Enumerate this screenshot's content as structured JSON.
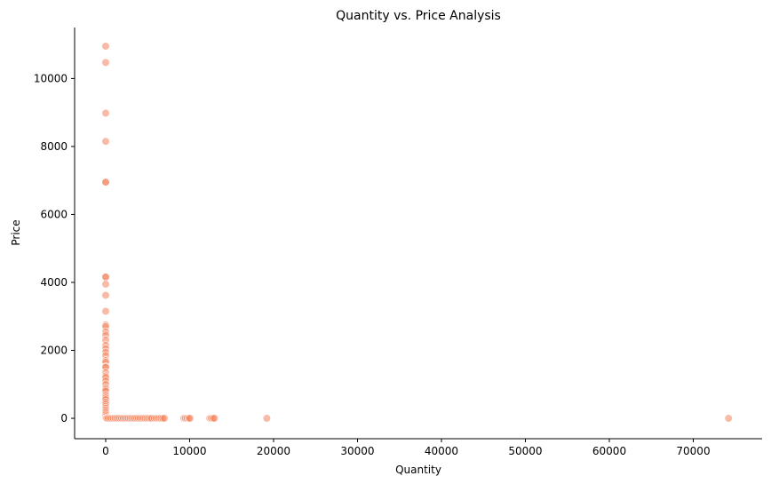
{
  "chart_data": {
    "type": "scatter",
    "title": "Quantity vs. Price Analysis",
    "xlabel": "Quantity",
    "ylabel": "Price",
    "xlim": [
      -3700,
      78200
    ],
    "ylim": [
      -600,
      11500
    ],
    "xticks": [
      0,
      10000,
      20000,
      30000,
      40000,
      50000,
      60000,
      70000
    ],
    "yticks": [
      0,
      2000,
      4000,
      6000,
      8000,
      10000
    ],
    "grid": false,
    "marker_color": "#f4845f",
    "marker_alpha": 0.55,
    "points": [
      {
        "x": 0,
        "y": 10950
      },
      {
        "x": 0,
        "y": 10470
      },
      {
        "x": 0,
        "y": 8980
      },
      {
        "x": 0,
        "y": 8150
      },
      {
        "x": 0,
        "y": 6950
      },
      {
        "x": 0,
        "y": 6950
      },
      {
        "x": 0,
        "y": 4160
      },
      {
        "x": 0,
        "y": 4160
      },
      {
        "x": 0,
        "y": 3950
      },
      {
        "x": 0,
        "y": 3620
      },
      {
        "x": 0,
        "y": 3150
      },
      {
        "x": 0,
        "y": 2750
      },
      {
        "x": 0,
        "y": 2700
      },
      {
        "x": 0,
        "y": 2550
      },
      {
        "x": 0,
        "y": 2450
      },
      {
        "x": 0,
        "y": 2300
      },
      {
        "x": 0,
        "y": 2150
      },
      {
        "x": 0,
        "y": 2050
      },
      {
        "x": 0,
        "y": 1950
      },
      {
        "x": 0,
        "y": 1850
      },
      {
        "x": 0,
        "y": 1700
      },
      {
        "x": 0,
        "y": 1650
      },
      {
        "x": 0,
        "y": 1520
      },
      {
        "x": 0,
        "y": 1500
      },
      {
        "x": 0,
        "y": 1350
      },
      {
        "x": 0,
        "y": 1250
      },
      {
        "x": 0,
        "y": 1200
      },
      {
        "x": 0,
        "y": 1100
      },
      {
        "x": 0,
        "y": 1000
      },
      {
        "x": 0,
        "y": 900
      },
      {
        "x": 0,
        "y": 850
      },
      {
        "x": 0,
        "y": 800
      },
      {
        "x": 0,
        "y": 700
      },
      {
        "x": 0,
        "y": 650
      },
      {
        "x": 0,
        "y": 600
      },
      {
        "x": 0,
        "y": 550
      },
      {
        "x": 0,
        "y": 480
      },
      {
        "x": 0,
        "y": 420
      },
      {
        "x": 0,
        "y": 350
      },
      {
        "x": 0,
        "y": 300
      },
      {
        "x": 0,
        "y": 250
      },
      {
        "x": 0,
        "y": 200
      },
      {
        "x": 0,
        "y": 150
      },
      {
        "x": 0,
        "y": 100
      },
      {
        "x": 0,
        "y": 50
      },
      {
        "x": 0,
        "y": 0
      },
      {
        "x": 80,
        "y": 0
      },
      {
        "x": 150,
        "y": 0
      },
      {
        "x": 300,
        "y": 0
      },
      {
        "x": 500,
        "y": 0
      },
      {
        "x": 700,
        "y": 0
      },
      {
        "x": 900,
        "y": 0
      },
      {
        "x": 1100,
        "y": 0
      },
      {
        "x": 1300,
        "y": 0
      },
      {
        "x": 1500,
        "y": 0
      },
      {
        "x": 1700,
        "y": 0
      },
      {
        "x": 1900,
        "y": 0
      },
      {
        "x": 2100,
        "y": 0
      },
      {
        "x": 2300,
        "y": 0
      },
      {
        "x": 2500,
        "y": 0
      },
      {
        "x": 2700,
        "y": 0
      },
      {
        "x": 2900,
        "y": 0
      },
      {
        "x": 3100,
        "y": 0
      },
      {
        "x": 3300,
        "y": 0
      },
      {
        "x": 3500,
        "y": 0
      },
      {
        "x": 3700,
        "y": 0
      },
      {
        "x": 3900,
        "y": 0
      },
      {
        "x": 4100,
        "y": 0
      },
      {
        "x": 4300,
        "y": 0
      },
      {
        "x": 4500,
        "y": 0
      },
      {
        "x": 4700,
        "y": 0
      },
      {
        "x": 4900,
        "y": 0
      },
      {
        "x": 5100,
        "y": 0
      },
      {
        "x": 5300,
        "y": 0
      },
      {
        "x": 5500,
        "y": 0
      },
      {
        "x": 5800,
        "y": 0
      },
      {
        "x": 6000,
        "y": 0
      },
      {
        "x": 6200,
        "y": 0
      },
      {
        "x": 6400,
        "y": 0
      },
      {
        "x": 6600,
        "y": 0
      },
      {
        "x": 6800,
        "y": 0
      },
      {
        "x": 7000,
        "y": 0
      },
      {
        "x": 9300,
        "y": 0
      },
      {
        "x": 9500,
        "y": 0
      },
      {
        "x": 9700,
        "y": 0
      },
      {
        "x": 9900,
        "y": 0
      },
      {
        "x": 10050,
        "y": 0
      },
      {
        "x": 12400,
        "y": 0
      },
      {
        "x": 12600,
        "y": 0
      },
      {
        "x": 12800,
        "y": 0
      },
      {
        "x": 12950,
        "y": 0
      },
      {
        "x": 19200,
        "y": 0
      },
      {
        "x": 74200,
        "y": 0
      }
    ]
  }
}
